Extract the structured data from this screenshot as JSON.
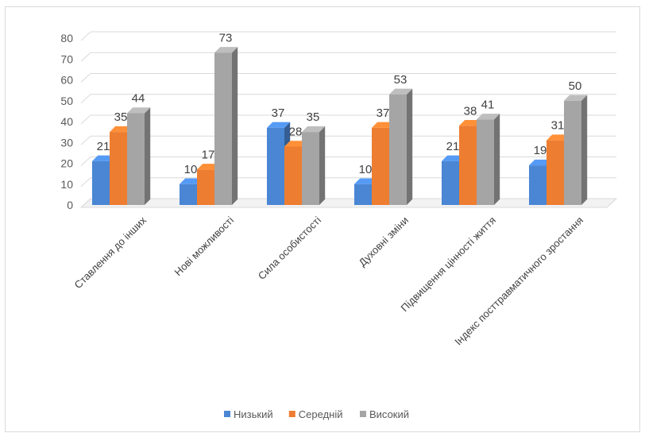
{
  "chart_data": {
    "type": "bar",
    "categories": [
      "Ставлення до інших",
      "Нові можливості",
      "Сила особистості",
      "Духовні зміни",
      "Підвищення цінності життя",
      "Індекс посттравматичного зростання"
    ],
    "series": [
      {
        "name": "Низький",
        "values": [
          21,
          10,
          37,
          10,
          21,
          19
        ],
        "color": "#4a86d4"
      },
      {
        "name": "Середній",
        "values": [
          35,
          17,
          28,
          37,
          38,
          31
        ],
        "color": "#ed7d31"
      },
      {
        "name": "Високий",
        "values": [
          44,
          73,
          35,
          53,
          41,
          50
        ],
        "color": "#a5a5a5"
      }
    ],
    "data_labels": [
      "21",
      "35",
      "44",
      "10",
      "17",
      "73",
      "37",
      "28",
      "35",
      "10",
      "37",
      "53",
      "21",
      "38",
      "41",
      "19",
      "31",
      "50"
    ],
    "y_ticks": [
      "0",
      "10",
      "20",
      "30",
      "40",
      "50",
      "60",
      "70",
      "80"
    ],
    "ylim": [
      0,
      80
    ],
    "grid": true,
    "legend_position": "bottom",
    "style": "3d-clustered-column"
  }
}
